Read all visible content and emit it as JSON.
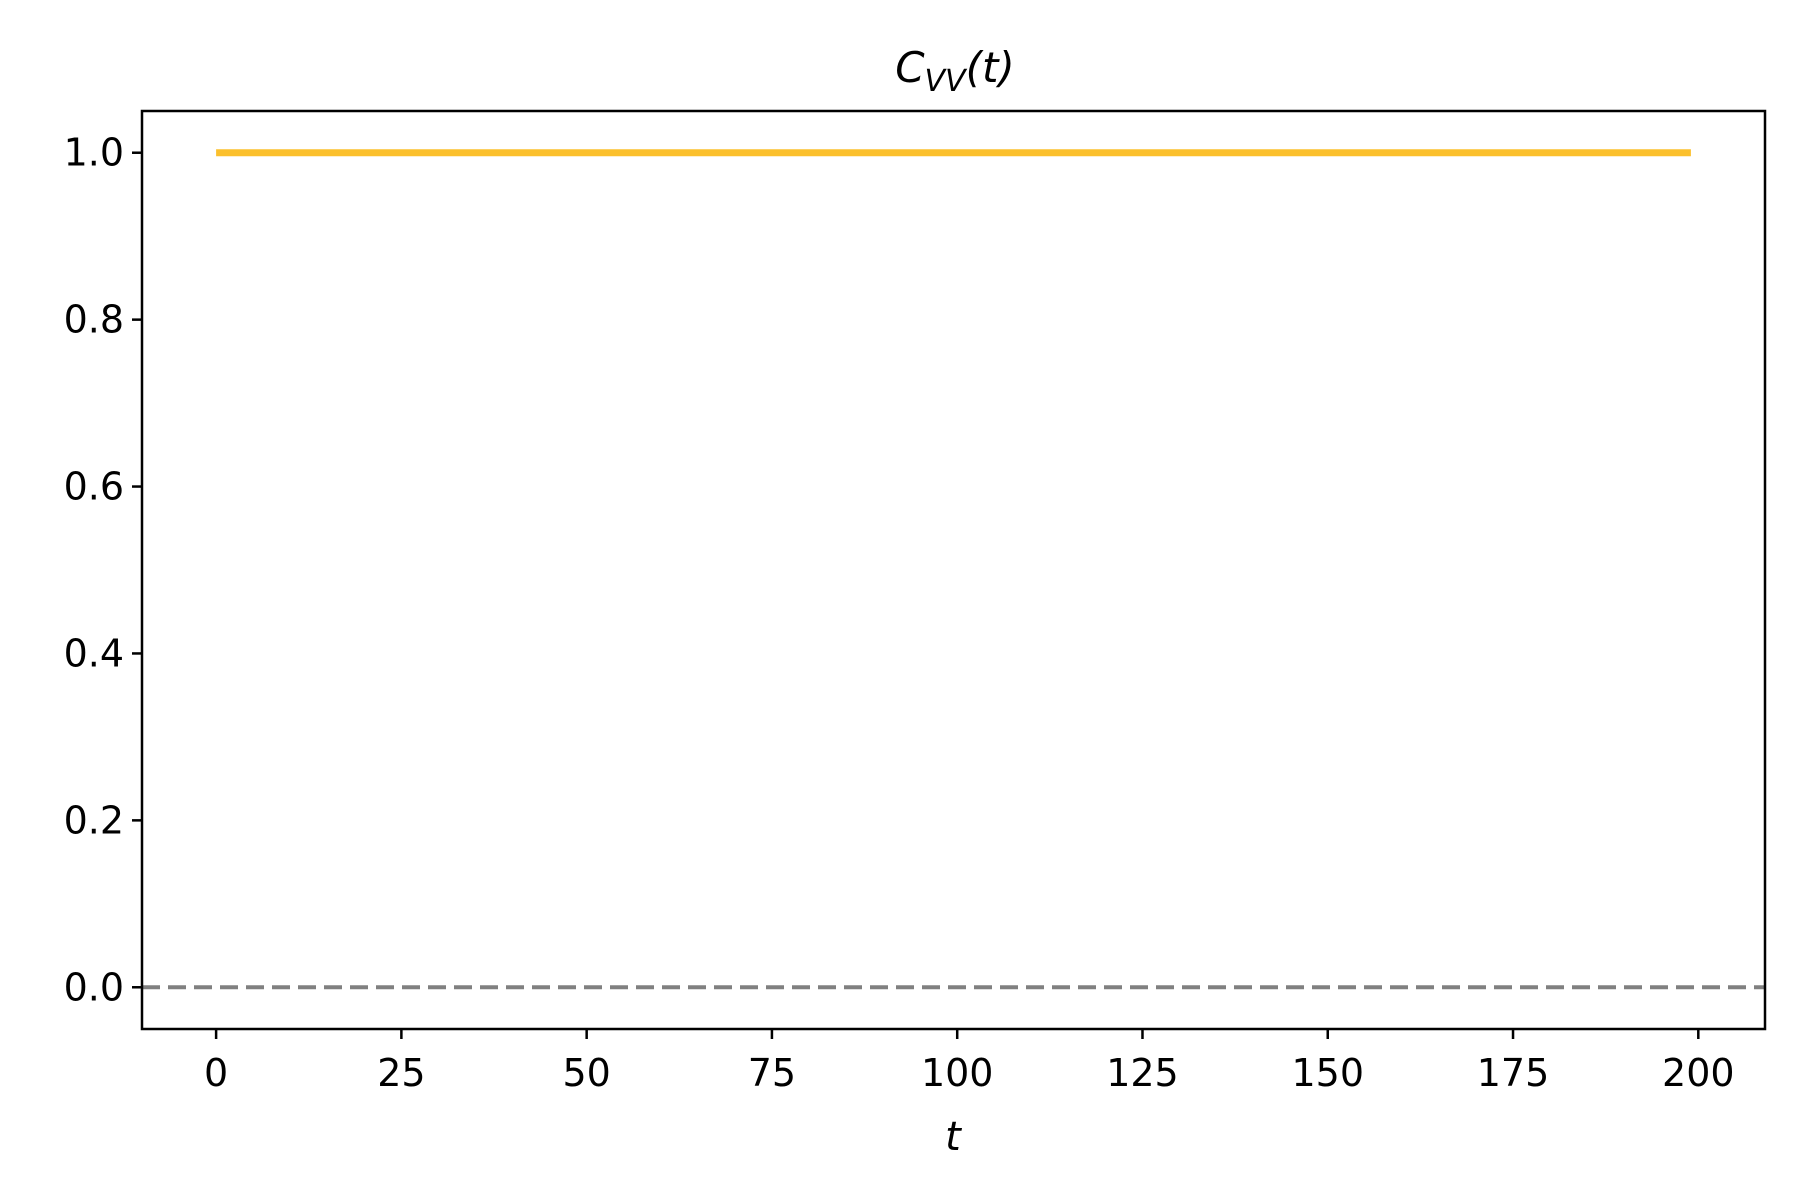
{
  "chart_data": {
    "type": "line",
    "title": {
      "main": "C",
      "subscript": "VV",
      "suffix": "(t)"
    },
    "xlabel": "t",
    "ylabel": "",
    "xlim": [
      -10,
      209
    ],
    "ylim": [
      -0.05,
      1.05
    ],
    "grid": false,
    "x_ticks": [
      "0",
      "25",
      "50",
      "75",
      "100",
      "125",
      "150",
      "175",
      "200"
    ],
    "y_ticks": [
      "0.0",
      "0.2",
      "0.4",
      "0.6",
      "0.8",
      "1.0"
    ],
    "series": [
      {
        "x": [
          0,
          199
        ],
        "y": [
          1.0,
          1.0
        ],
        "color": "#fbc02d",
        "style": "solid"
      }
    ],
    "reference_lines": [
      {
        "axis": "y",
        "value": 0.0,
        "color": "#808080",
        "style": "dashed"
      }
    ]
  }
}
